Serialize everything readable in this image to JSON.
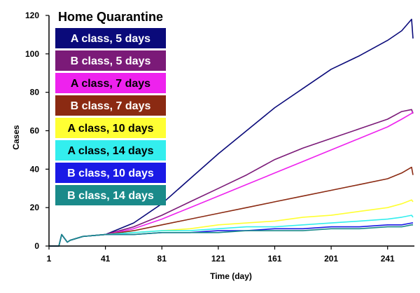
{
  "chart_data": {
    "type": "line",
    "legend_title": "Home Quarantine",
    "xlabel": "Time (day)",
    "ylabel": "Cases",
    "xlim": [
      1,
      260
    ],
    "ylim": [
      0,
      120
    ],
    "x_ticks": [
      1,
      41,
      81,
      121,
      161,
      201,
      241
    ],
    "y_ticks": [
      0,
      20,
      40,
      60,
      80,
      100,
      120
    ],
    "grid": false,
    "legend_position": "top-left",
    "series": [
      {
        "name": "A class, 5 days",
        "color": "#0a0a7a",
        "label_color": "#ffffff",
        "x": [
          1,
          8,
          10,
          14,
          16,
          25,
          41,
          61,
          81,
          101,
          121,
          141,
          161,
          181,
          201,
          221,
          241,
          251,
          258,
          259
        ],
        "y": [
          0,
          0,
          6,
          2,
          3,
          5,
          6,
          12,
          22,
          35,
          48,
          60,
          72,
          82,
          92,
          99,
          107,
          112,
          118,
          108
        ]
      },
      {
        "name": "B class, 5 days",
        "color": "#7b1a78",
        "label_color": "#ffffff",
        "x": [
          1,
          8,
          10,
          14,
          16,
          25,
          41,
          61,
          81,
          101,
          121,
          141,
          161,
          181,
          201,
          221,
          241,
          251,
          258,
          259
        ],
        "y": [
          0,
          0,
          6,
          2,
          3,
          5,
          6,
          10,
          16,
          23,
          30,
          37,
          45,
          51,
          56,
          61,
          66,
          70,
          71,
          69
        ]
      },
      {
        "name": "A class, 7 days",
        "color": "#ee22ee",
        "label_color": "#000000",
        "x": [
          1,
          8,
          10,
          14,
          16,
          25,
          41,
          61,
          81,
          101,
          121,
          141,
          161,
          181,
          201,
          221,
          241,
          251,
          258,
          259
        ],
        "y": [
          0,
          0,
          6,
          2,
          3,
          5,
          6,
          9,
          14,
          20,
          26,
          32,
          38,
          44,
          50,
          56,
          62,
          66,
          69,
          70
        ]
      },
      {
        "name": "B class, 7 days",
        "color": "#8b2a12",
        "label_color": "#ffffff",
        "x": [
          1,
          8,
          10,
          14,
          16,
          25,
          41,
          61,
          81,
          101,
          121,
          141,
          161,
          181,
          201,
          221,
          241,
          251,
          258,
          259
        ],
        "y": [
          0,
          0,
          6,
          2,
          3,
          5,
          6,
          8,
          11,
          14,
          17,
          20,
          23,
          26,
          29,
          32,
          35,
          38,
          41,
          37
        ]
      },
      {
        "name": "A class, 10 days",
        "color": "#ffff33",
        "label_color": "#000000",
        "x": [
          1,
          8,
          10,
          14,
          16,
          25,
          41,
          61,
          81,
          101,
          121,
          141,
          161,
          181,
          201,
          221,
          241,
          251,
          258,
          259
        ],
        "y": [
          0,
          0,
          6,
          2,
          3,
          5,
          6,
          7,
          8,
          9,
          11,
          12,
          13,
          15,
          16,
          18,
          20,
          22,
          24,
          23
        ]
      },
      {
        "name": "A class, 14 days",
        "color": "#33eeee",
        "label_color": "#000000",
        "x": [
          1,
          8,
          10,
          14,
          16,
          25,
          41,
          61,
          81,
          101,
          121,
          141,
          161,
          181,
          201,
          221,
          241,
          251,
          258,
          259
        ],
        "y": [
          0,
          0,
          6,
          2,
          3,
          5,
          6,
          7,
          8,
          8,
          9,
          10,
          10,
          11,
          12,
          13,
          14,
          15,
          16,
          15
        ]
      },
      {
        "name": "B class, 10 days",
        "color": "#1a1ae6",
        "label_color": "#ffffff",
        "x": [
          1,
          8,
          10,
          14,
          16,
          25,
          41,
          61,
          81,
          101,
          121,
          141,
          161,
          181,
          201,
          221,
          241,
          251,
          258,
          259
        ],
        "y": [
          0,
          0,
          6,
          2,
          3,
          5,
          6,
          6,
          7,
          7,
          8,
          8,
          9,
          9,
          10,
          10,
          11,
          11,
          12,
          12
        ]
      },
      {
        "name": "B class, 14 days",
        "color": "#1a8a8a",
        "label_color": "#ffffff",
        "x": [
          1,
          8,
          10,
          14,
          16,
          25,
          41,
          61,
          81,
          101,
          121,
          141,
          161,
          181,
          201,
          221,
          241,
          251,
          258,
          259
        ],
        "y": [
          0,
          0,
          6,
          2,
          3,
          5,
          6,
          6,
          7,
          7,
          7,
          8,
          8,
          8,
          9,
          9,
          10,
          10,
          11,
          11
        ]
      }
    ]
  }
}
